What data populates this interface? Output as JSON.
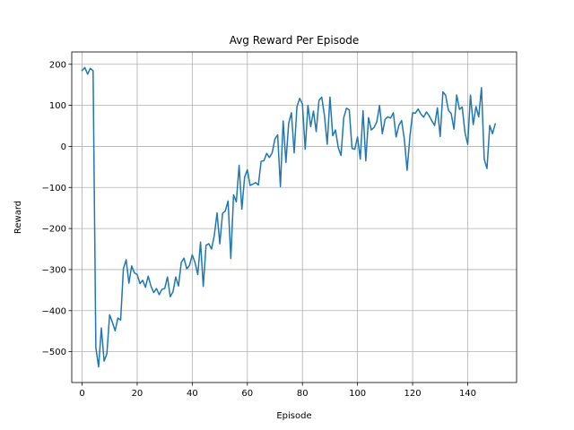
{
  "chart_data": {
    "type": "line",
    "title": "Avg Reward Per Episode",
    "xlabel": "Episode",
    "ylabel": "Reward",
    "xlim": [
      -3.75,
      157.75
    ],
    "ylim": [
      -575,
      230
    ],
    "xticks": [
      0,
      20,
      40,
      60,
      80,
      100,
      120,
      140
    ],
    "yticks": [
      -500,
      -400,
      -300,
      -200,
      -100,
      0,
      100,
      200
    ],
    "grid": true,
    "line_color": "#1f77b4",
    "grid_color": "#b0b0b0",
    "series": [
      {
        "values": [
          185,
          192,
          176,
          190,
          184,
          -490,
          -537,
          -442,
          -523,
          -505,
          -410,
          -428,
          -449,
          -418,
          -423,
          -298,
          -276,
          -333,
          -291,
          -308,
          -312,
          -334,
          -326,
          -343,
          -316,
          -340,
          -356,
          -346,
          -361,
          -348,
          -346,
          -318,
          -366,
          -354,
          -318,
          -340,
          -283,
          -272,
          -298,
          -290,
          -264,
          -283,
          -312,
          -233,
          -341,
          -241,
          -237,
          -250,
          -217,
          -162,
          -237,
          -163,
          -157,
          -133,
          -273,
          -118,
          -135,
          -46,
          -153,
          -75,
          -57,
          -95,
          -92,
          -88,
          -94,
          -36,
          -35,
          -17,
          -27,
          -16,
          18,
          28,
          -98,
          62,
          -39,
          56,
          82,
          -16,
          96,
          117,
          103,
          -7,
          100,
          48,
          86,
          36,
          112,
          120,
          75,
          5,
          120,
          26,
          40,
          -3,
          -22,
          70,
          93,
          89,
          -5,
          -7,
          23,
          -31,
          87,
          -35,
          70,
          40,
          46,
          60,
          100,
          31,
          66,
          72,
          69,
          82,
          23,
          51,
          63,
          17,
          -58,
          23,
          82,
          81,
          91,
          79,
          71,
          84,
          75,
          62,
          51,
          94,
          24,
          133,
          124,
          88,
          80,
          42,
          125,
          90,
          96,
          34,
          5,
          125,
          53,
          97,
          72,
          143,
          -31,
          -54,
          51,
          31,
          55
        ]
      }
    ]
  }
}
